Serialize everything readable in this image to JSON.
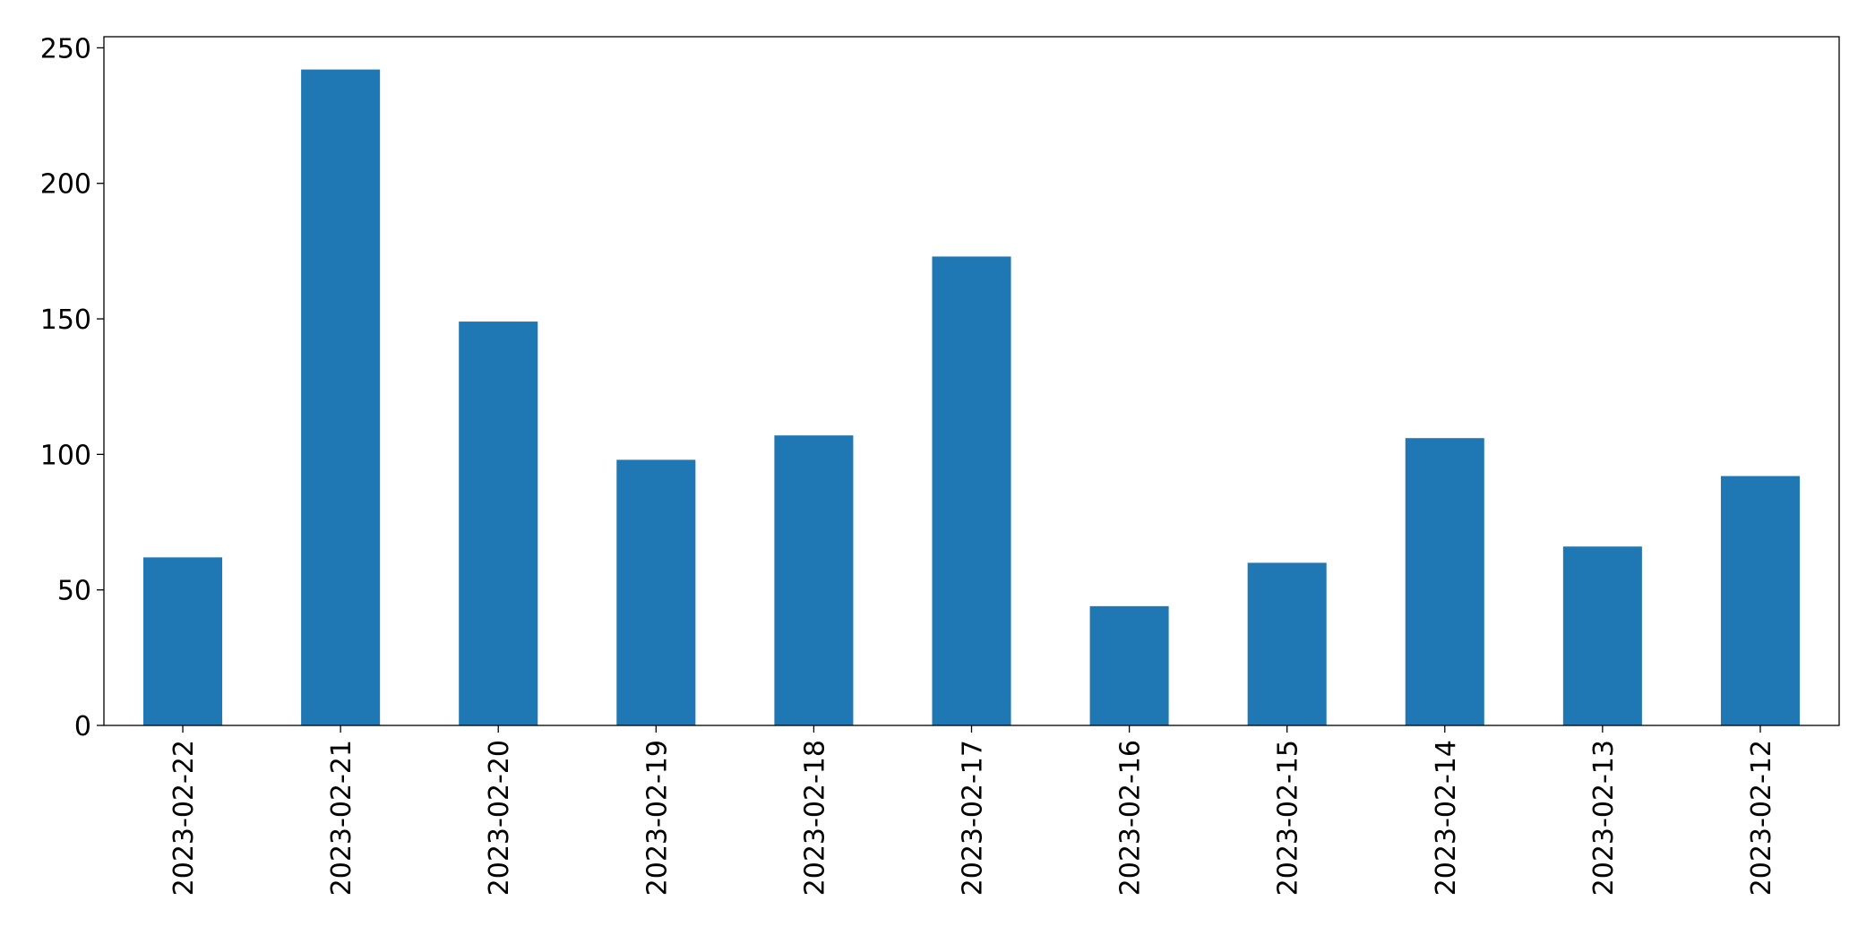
{
  "chart_data": {
    "type": "bar",
    "categories": [
      "2023-02-22",
      "2023-02-21",
      "2023-02-20",
      "2023-02-19",
      "2023-02-18",
      "2023-02-17",
      "2023-02-16",
      "2023-02-15",
      "2023-02-14",
      "2023-02-13",
      "2023-02-12"
    ],
    "values": [
      62,
      242,
      149,
      98,
      107,
      173,
      44,
      60,
      106,
      66,
      92
    ],
    "color": "#1f77b4",
    "ylim": [
      0,
      254.1
    ],
    "yticks": [
      0,
      50,
      100,
      150,
      200,
      250
    ],
    "grid": false
  }
}
